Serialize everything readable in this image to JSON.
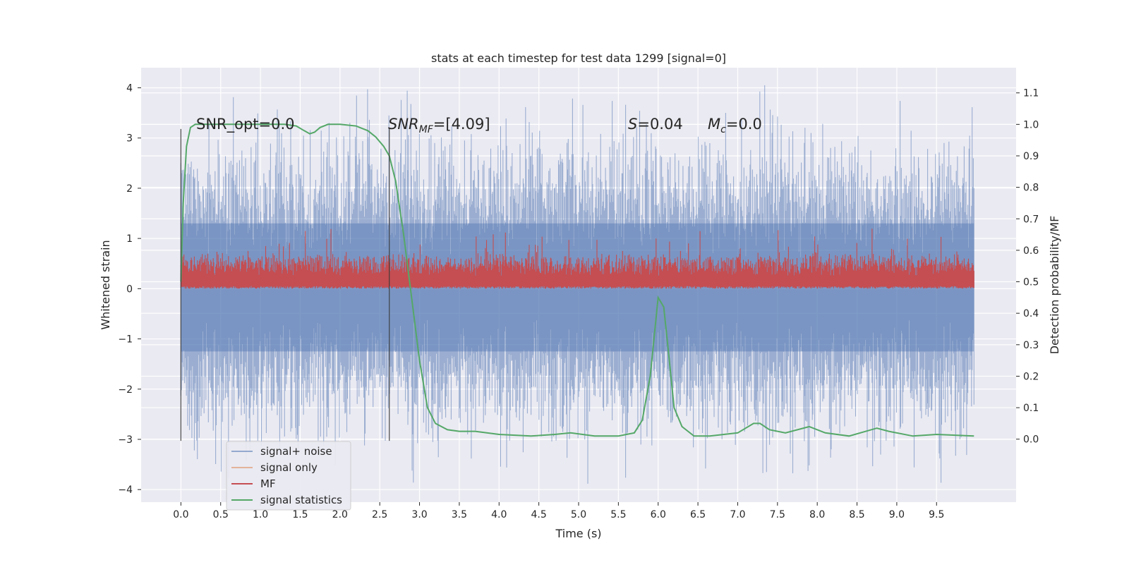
{
  "chart_data": {
    "type": "line",
    "title": "stats at each timestep for test data 1299 [signal=0]",
    "xlabel": "Time (s)",
    "ylabel": "Whitened strain",
    "ylabel_right": "Detection probability/MF",
    "xlim": [
      -0.5,
      10.5
    ],
    "ylim": [
      -4.25,
      4.4
    ],
    "ylim_right": [
      -0.2,
      1.18
    ],
    "x_ticks": [
      "0.0",
      "0.5",
      "1.0",
      "1.5",
      "2.0",
      "2.5",
      "3.0",
      "3.5",
      "4.0",
      "4.5",
      "5.0",
      "5.5",
      "6.0",
      "6.5",
      "7.0",
      "7.5",
      "8.0",
      "8.5",
      "9.0",
      "9.5"
    ],
    "y_ticks": [
      "4",
      "3",
      "2",
      "1",
      "0",
      "−1",
      "−2",
      "−3",
      "−4"
    ],
    "y_ticks_right": [
      "1.1",
      "1.0",
      "0.9",
      "0.8",
      "0.7",
      "0.6",
      "0.5",
      "0.4",
      "0.3",
      "0.2",
      "0.1",
      "0.0"
    ],
    "grid": true,
    "legend_position": "lower-left",
    "annotations": {
      "snr_opt": "SNR_opt=0.0",
      "snr_mf_base": "SNR",
      "snr_mf_sub": "MF",
      "snr_mf_value": "=[4.09]",
      "s_base": "S",
      "s_value": "=0.04",
      "mc_base": "M",
      "mc_sub": "c",
      "mc_value": "=0.0"
    },
    "vlines_x": [
      0.0,
      2.62
    ],
    "series": [
      {
        "name": "signal+ noise",
        "color": "#4c72b0",
        "band": {
          "upper_typ": 2.2,
          "upper_max": 4.05,
          "lower_typ": -2.2,
          "lower_min": -3.9
        }
      },
      {
        "name": "signal only",
        "color": "#dd8452",
        "values": []
      },
      {
        "name": "MF",
        "color": "#c44e52",
        "band": {
          "lower": 0.0,
          "upper_typ": 0.55,
          "upper_max": 1.4
        }
      },
      {
        "name": "signal statistics",
        "color": "#55a868",
        "x": [
          0.0,
          0.03,
          0.07,
          0.12,
          0.18,
          0.25,
          0.35,
          0.5,
          0.8,
          1.0,
          1.3,
          1.45,
          1.55,
          1.62,
          1.68,
          1.75,
          1.85,
          2.0,
          2.2,
          2.35,
          2.45,
          2.55,
          2.62,
          2.7,
          2.8,
          2.9,
          3.0,
          3.1,
          3.2,
          3.35,
          3.5,
          3.7,
          4.0,
          4.4,
          4.7,
          4.9,
          5.2,
          5.5,
          5.7,
          5.8,
          5.9,
          6.0,
          6.07,
          6.12,
          6.2,
          6.3,
          6.45,
          6.65,
          7.0,
          7.2,
          7.28,
          7.4,
          7.6,
          7.9,
          8.1,
          8.4,
          8.75,
          8.9,
          9.2,
          9.5,
          9.97
        ],
        "values": [
          0.5,
          0.75,
          0.93,
          0.99,
          1.0,
          1.0,
          1.0,
          1.0,
          1.0,
          1.0,
          1.0,
          0.995,
          0.98,
          0.97,
          0.975,
          0.99,
          1.0,
          1.0,
          0.995,
          0.98,
          0.96,
          0.93,
          0.9,
          0.82,
          0.65,
          0.45,
          0.25,
          0.1,
          0.05,
          0.03,
          0.025,
          0.025,
          0.015,
          0.01,
          0.015,
          0.02,
          0.01,
          0.01,
          0.02,
          0.06,
          0.2,
          0.45,
          0.42,
          0.3,
          0.1,
          0.04,
          0.01,
          0.01,
          0.02,
          0.05,
          0.05,
          0.03,
          0.02,
          0.04,
          0.02,
          0.01,
          0.035,
          0.025,
          0.01,
          0.015,
          0.01
        ]
      }
    ]
  }
}
